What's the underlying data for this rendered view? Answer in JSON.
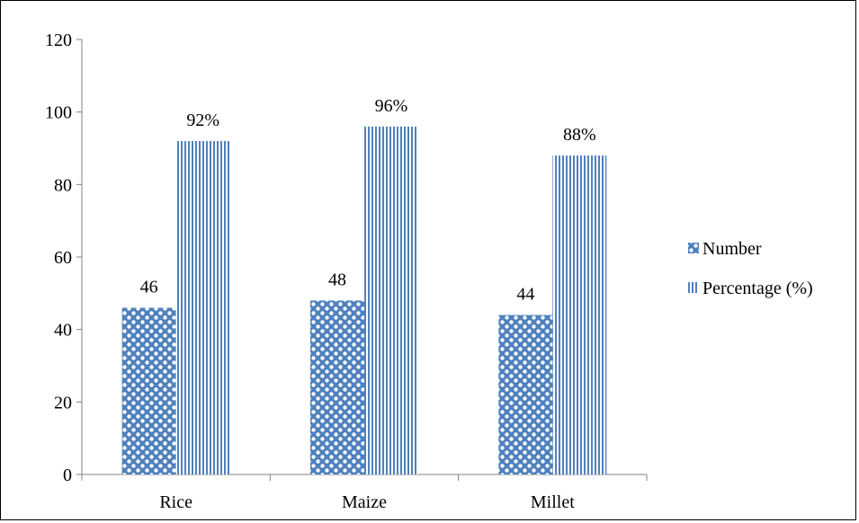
{
  "chart_data": {
    "type": "bar",
    "categories": [
      "Rice",
      "Maize",
      "Millet"
    ],
    "series": [
      {
        "name": "Number",
        "values": [
          46,
          48,
          44
        ],
        "labels": [
          "46",
          "48",
          "44"
        ],
        "pattern": "checker"
      },
      {
        "name": "Percentage (%)",
        "values": [
          92,
          96,
          88
        ],
        "labels": [
          "92%",
          "96%",
          "88%"
        ],
        "pattern": "vertical-lines"
      }
    ],
    "ylim": [
      0,
      120
    ],
    "yticks": [
      0,
      20,
      40,
      60,
      80,
      100,
      120
    ],
    "grid": false,
    "legend_position": "right",
    "colors": {
      "fill": "#4F81BD",
      "background": "#ffffff",
      "axis": "#808080"
    }
  }
}
